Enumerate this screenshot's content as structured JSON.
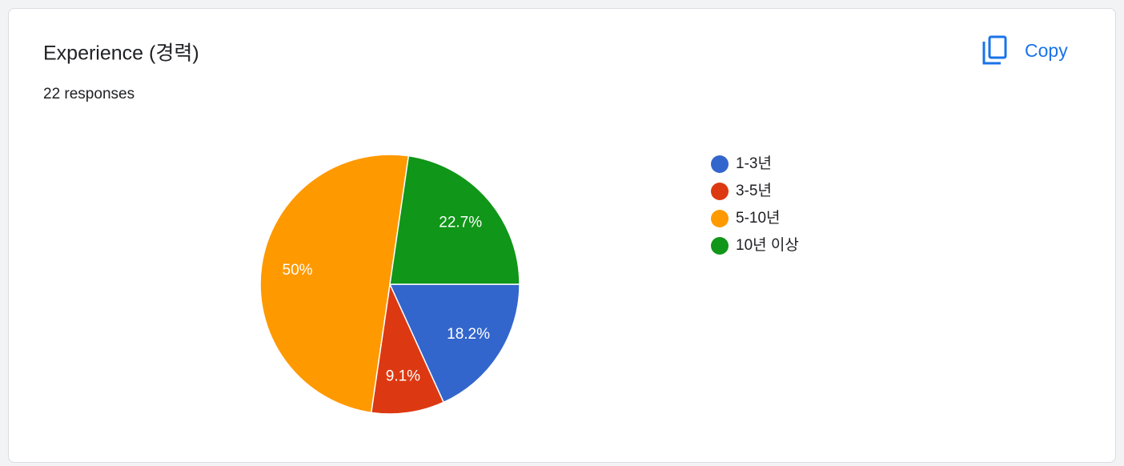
{
  "header": {
    "title": "Experience (경력)",
    "subtitle": "22 responses",
    "action": "Copy"
  },
  "chart_data": {
    "type": "pie",
    "categories": [
      "1-3년",
      "3-5년",
      "5-10년",
      "10년 이상"
    ],
    "values": [
      18.2,
      9.1,
      50,
      22.7
    ],
    "value_labels": [
      "18.2%",
      "9.1%",
      "50%",
      "22.7%"
    ],
    "colors": [
      "#3366cc",
      "#dc3912",
      "#ff9900",
      "#109618"
    ],
    "legend": "right"
  }
}
